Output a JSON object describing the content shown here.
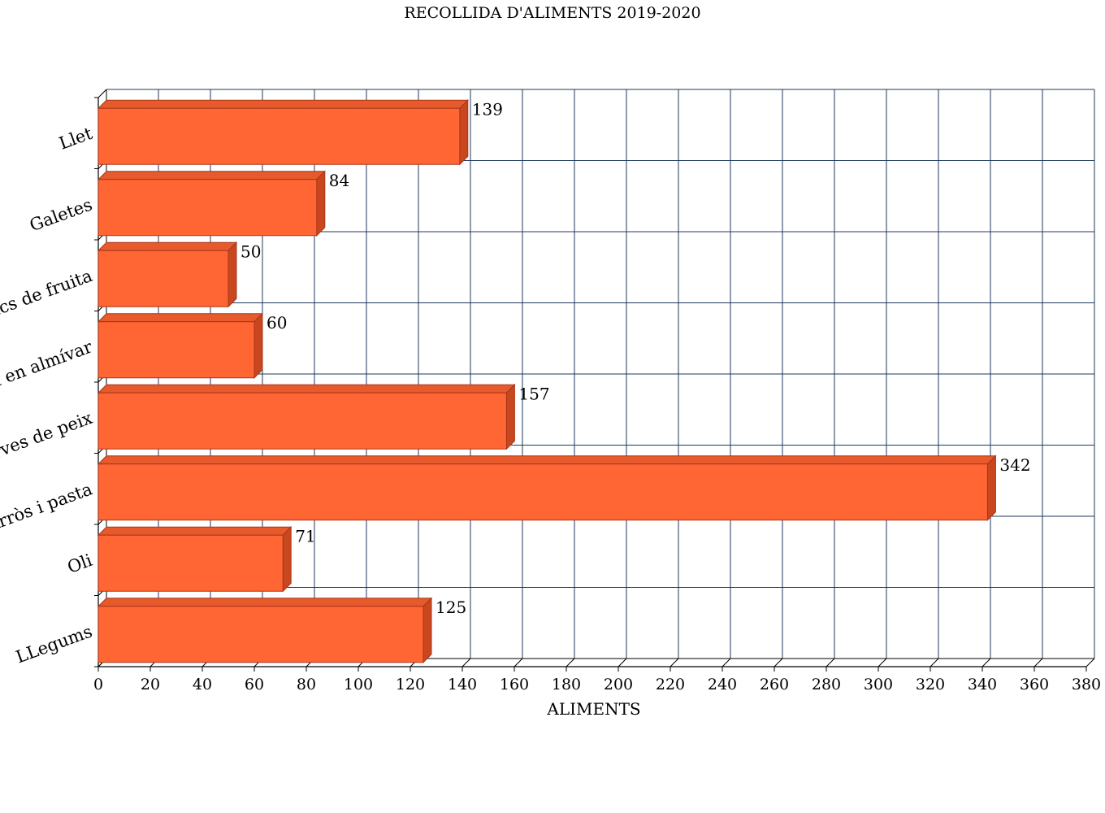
{
  "chart_data": {
    "type": "bar",
    "orientation": "horizontal",
    "title": "RECOLLIDA D'ALIMENTS 2019-2020",
    "xlabel": "ALIMENTS",
    "ylabel": "",
    "categories": [
      "Llet",
      "Galetes",
      "Sucs de fruita",
      "Fruita en almívar",
      "Conserves de peix",
      "Arròs i pasta",
      "Oli",
      "LLegums"
    ],
    "values": [
      139,
      84,
      50,
      60,
      157,
      342,
      71,
      125
    ],
    "xlim": [
      0,
      380
    ],
    "xticks": [
      0,
      20,
      40,
      60,
      80,
      100,
      120,
      140,
      160,
      180,
      200,
      220,
      240,
      260,
      280,
      300,
      320,
      340,
      360,
      380
    ],
    "grid": true,
    "legend": "none",
    "bar_style": "3d",
    "colors": {
      "bar_face": "#ff6633",
      "bar_top": "#e65a2c",
      "bar_side": "#c9471e",
      "bar_edge": "#a8361a",
      "grid": "#1c3a5c",
      "axis": "#000000"
    }
  }
}
